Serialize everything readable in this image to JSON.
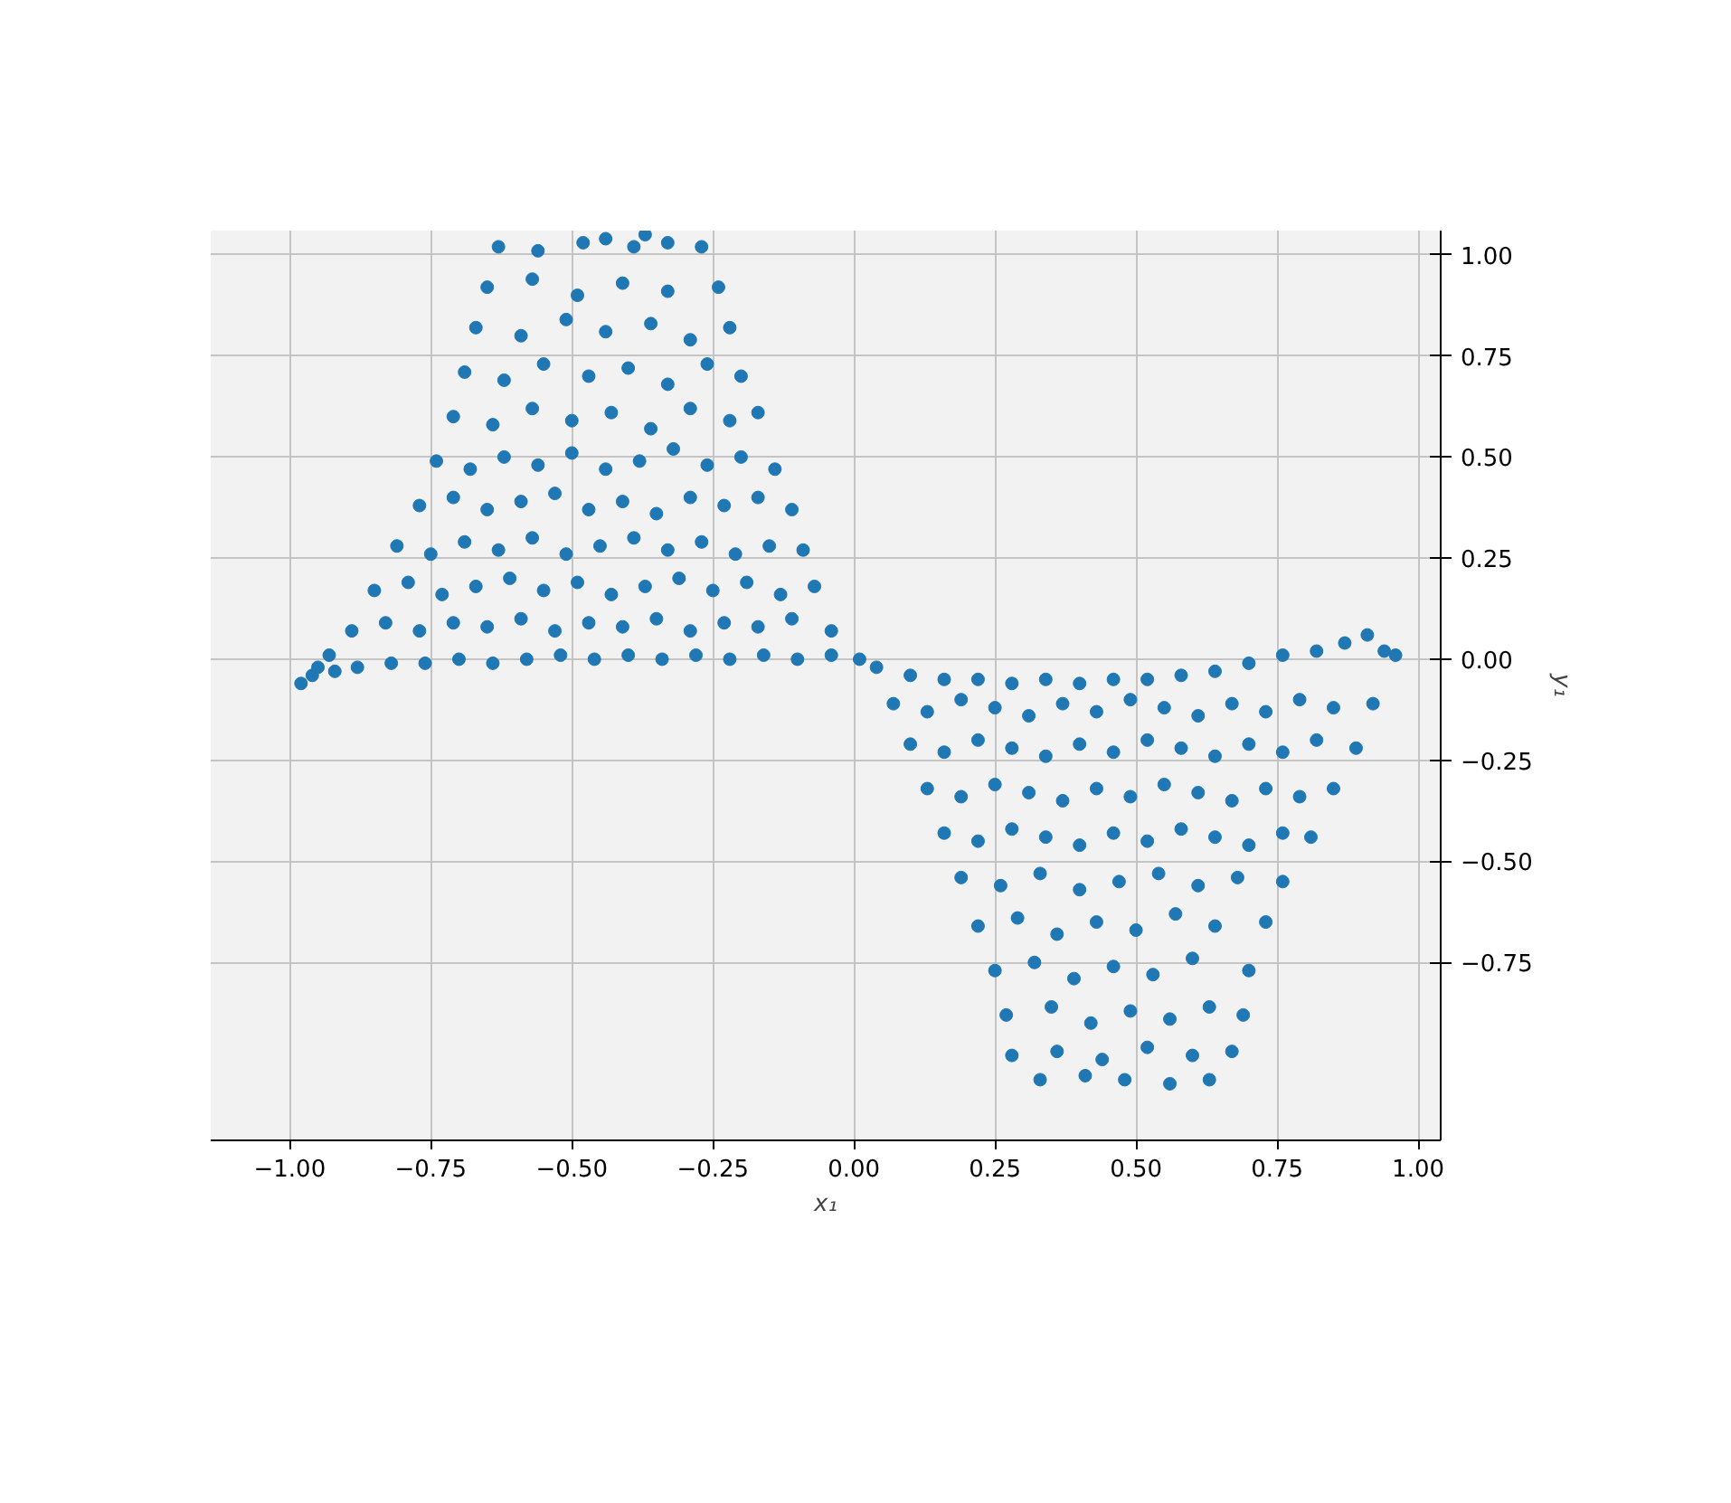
{
  "chart_data": {
    "type": "scatter",
    "xlabel": "x₁",
    "ylabel": "y₁",
    "color": "#1f77b4",
    "marker": "circle",
    "grid": true,
    "xlim": [
      -1.14,
      1.04
    ],
    "ylim": [
      -1.19,
      1.06
    ],
    "xticks": [
      {
        "value": -1,
        "label": "−1.00"
      },
      {
        "value": -0.75,
        "label": "−0.75"
      },
      {
        "value": -0.5,
        "label": "−0.50"
      },
      {
        "value": -0.25,
        "label": "−0.25"
      },
      {
        "value": 0,
        "label": "0.00"
      },
      {
        "value": 0.25,
        "label": "0.25"
      },
      {
        "value": 0.5,
        "label": "0.50"
      },
      {
        "value": 0.75,
        "label": "0.75"
      },
      {
        "value": 1,
        "label": "1.00"
      }
    ],
    "yticks": [
      {
        "value": -0.75,
        "label": "−0.75"
      },
      {
        "value": -0.5,
        "label": "−0.50"
      },
      {
        "value": -0.25,
        "label": "−0.25"
      },
      {
        "value": 0,
        "label": "0.00"
      },
      {
        "value": 0.25,
        "label": "0.25"
      },
      {
        "value": 0.5,
        "label": "0.50"
      },
      {
        "value": 0.75,
        "label": "0.75"
      },
      {
        "value": 1,
        "label": "1.00"
      }
    ],
    "x": [
      -0.98,
      -0.96,
      -0.95,
      -0.93,
      -0.92,
      -0.88,
      -0.82,
      -0.76,
      -0.7,
      -0.64,
      -0.58,
      -0.52,
      -0.46,
      -0.4,
      -0.34,
      -0.28,
      -0.22,
      -0.16,
      -0.1,
      -0.04,
      0.01,
      -0.89,
      -0.83,
      -0.77,
      -0.71,
      -0.65,
      -0.59,
      -0.53,
      -0.47,
      -0.41,
      -0.35,
      -0.29,
      -0.23,
      -0.17,
      -0.11,
      -0.04,
      -0.85,
      -0.79,
      -0.73,
      -0.67,
      -0.61,
      -0.55,
      -0.49,
      -0.43,
      -0.37,
      -0.31,
      -0.25,
      -0.19,
      -0.13,
      -0.07,
      -0.81,
      -0.75,
      -0.69,
      -0.63,
      -0.57,
      -0.51,
      -0.45,
      -0.39,
      -0.33,
      -0.27,
      -0.21,
      -0.15,
      -0.09,
      -0.77,
      -0.71,
      -0.65,
      -0.59,
      -0.53,
      -0.47,
      -0.41,
      -0.35,
      -0.29,
      -0.23,
      -0.17,
      -0.11,
      -0.74,
      -0.68,
      -0.62,
      -0.56,
      -0.5,
      -0.44,
      -0.38,
      -0.32,
      -0.26,
      -0.2,
      -0.14,
      -0.71,
      -0.64,
      -0.57,
      -0.5,
      -0.43,
      -0.36,
      -0.29,
      -0.22,
      -0.17,
      -0.69,
      -0.62,
      -0.55,
      -0.47,
      -0.4,
      -0.33,
      -0.26,
      -0.2,
      -0.67,
      -0.59,
      -0.51,
      -0.44,
      -0.36,
      -0.29,
      -0.22,
      -0.65,
      -0.57,
      -0.49,
      -0.41,
      -0.33,
      -0.24,
      -0.63,
      -0.56,
      -0.48,
      -0.44,
      -0.39,
      -0.37,
      -0.33,
      -0.27,
      0.04,
      0.1,
      0.16,
      0.22,
      0.28,
      0.34,
      0.4,
      0.46,
      0.52,
      0.58,
      0.64,
      0.7,
      0.76,
      0.82,
      0.87,
      0.91,
      0.94,
      0.96,
      0.07,
      0.13,
      0.19,
      0.25,
      0.31,
      0.37,
      0.43,
      0.49,
      0.55,
      0.61,
      0.67,
      0.73,
      0.79,
      0.85,
      0.92,
      0.1,
      0.16,
      0.22,
      0.28,
      0.34,
      0.4,
      0.46,
      0.52,
      0.58,
      0.64,
      0.7,
      0.76,
      0.82,
      0.89,
      0.13,
      0.19,
      0.25,
      0.31,
      0.37,
      0.43,
      0.49,
      0.55,
      0.61,
      0.67,
      0.73,
      0.79,
      0.85,
      0.16,
      0.22,
      0.28,
      0.34,
      0.4,
      0.46,
      0.52,
      0.58,
      0.64,
      0.7,
      0.76,
      0.81,
      0.19,
      0.26,
      0.33,
      0.4,
      0.47,
      0.54,
      0.61,
      0.68,
      0.76,
      0.22,
      0.29,
      0.36,
      0.43,
      0.5,
      0.57,
      0.64,
      0.73,
      0.25,
      0.32,
      0.39,
      0.46,
      0.53,
      0.6,
      0.7,
      0.27,
      0.35,
      0.42,
      0.49,
      0.56,
      0.63,
      0.69,
      0.28,
      0.36,
      0.44,
      0.52,
      0.6,
      0.67,
      0.33,
      0.41,
      0.48,
      0.56,
      0.63
    ],
    "values": [
      -0.06,
      -0.04,
      -0.02,
      0.01,
      -0.03,
      -0.02,
      -0.01,
      -0.01,
      0,
      -0.01,
      0,
      0.01,
      0,
      0.01,
      0,
      0.01,
      0,
      0.01,
      0,
      0.01,
      0,
      0.07,
      0.09,
      0.07,
      0.09,
      0.08,
      0.1,
      0.07,
      0.09,
      0.08,
      0.1,
      0.07,
      0.09,
      0.08,
      0.1,
      0.07,
      0.17,
      0.19,
      0.16,
      0.18,
      0.2,
      0.17,
      0.19,
      0.16,
      0.18,
      0.2,
      0.17,
      0.19,
      0.16,
      0.18,
      0.28,
      0.26,
      0.29,
      0.27,
      0.3,
      0.26,
      0.28,
      0.3,
      0.27,
      0.29,
      0.26,
      0.28,
      0.27,
      0.38,
      0.4,
      0.37,
      0.39,
      0.41,
      0.37,
      0.39,
      0.36,
      0.4,
      0.38,
      0.4,
      0.37,
      0.49,
      0.47,
      0.5,
      0.48,
      0.51,
      0.47,
      0.49,
      0.52,
      0.48,
      0.5,
      0.47,
      0.6,
      0.58,
      0.62,
      0.59,
      0.61,
      0.57,
      0.62,
      0.59,
      0.61,
      0.71,
      0.69,
      0.73,
      0.7,
      0.72,
      0.68,
      0.73,
      0.7,
      0.82,
      0.8,
      0.84,
      0.81,
      0.83,
      0.79,
      0.82,
      0.92,
      0.94,
      0.9,
      0.93,
      0.91,
      0.92,
      1.02,
      1.01,
      1.03,
      1.04,
      1.02,
      1.05,
      1.03,
      1.02,
      -0.02,
      -0.04,
      -0.05,
      -0.05,
      -0.06,
      -0.05,
      -0.06,
      -0.05,
      -0.05,
      -0.04,
      -0.03,
      -0.01,
      0.01,
      0.02,
      0.04,
      0.06,
      0.02,
      0.01,
      -0.11,
      -0.13,
      -0.1,
      -0.12,
      -0.14,
      -0.11,
      -0.13,
      -0.1,
      -0.12,
      -0.14,
      -0.11,
      -0.13,
      -0.1,
      -0.12,
      -0.11,
      -0.21,
      -0.23,
      -0.2,
      -0.22,
      -0.24,
      -0.21,
      -0.23,
      -0.2,
      -0.22,
      -0.24,
      -0.21,
      -0.23,
      -0.2,
      -0.22,
      -0.32,
      -0.34,
      -0.31,
      -0.33,
      -0.35,
      -0.32,
      -0.34,
      -0.31,
      -0.33,
      -0.35,
      -0.32,
      -0.34,
      -0.32,
      -0.43,
      -0.45,
      -0.42,
      -0.44,
      -0.46,
      -0.43,
      -0.45,
      -0.42,
      -0.44,
      -0.46,
      -0.43,
      -0.44,
      -0.54,
      -0.56,
      -0.53,
      -0.57,
      -0.55,
      -0.53,
      -0.56,
      -0.54,
      -0.55,
      -0.66,
      -0.64,
      -0.68,
      -0.65,
      -0.67,
      -0.63,
      -0.66,
      -0.65,
      -0.77,
      -0.75,
      -0.79,
      -0.76,
      -0.78,
      -0.74,
      -0.77,
      -0.88,
      -0.86,
      -0.9,
      -0.87,
      -0.89,
      -0.86,
      -0.88,
      -0.98,
      -0.97,
      -0.99,
      -0.96,
      -0.98,
      -0.97,
      -1.04,
      -1.03,
      -1.04,
      -1.05,
      -1.04
    ]
  }
}
